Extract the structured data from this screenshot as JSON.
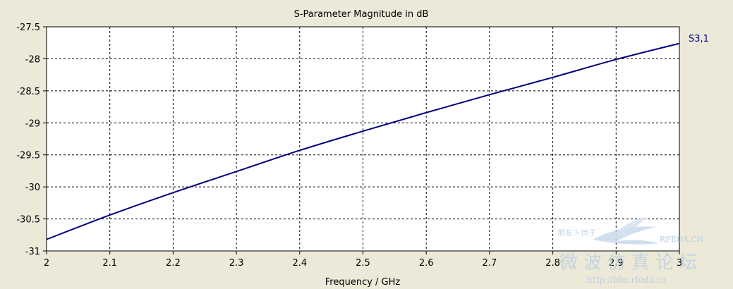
{
  "chart_data": {
    "type": "line",
    "title": "S-Parameter Magnitude in dB",
    "xlabel": "Frequency / GHz",
    "ylabel": "",
    "xlim": [
      2,
      3
    ],
    "ylim": [
      -31,
      -27.5
    ],
    "x_ticks": [
      "2",
      "2.1",
      "2.2",
      "2.3",
      "2.4",
      "2.5",
      "2.6",
      "2.7",
      "2.8",
      "2.9",
      "3"
    ],
    "y_ticks": [
      "-27.5",
      "-28",
      "-28.5",
      "-29",
      "-29.5",
      "-30",
      "-30.5",
      "-31"
    ],
    "grid": true,
    "grid_style": "dashed",
    "legend_placement": "right",
    "series": [
      {
        "name": "S3,1",
        "color": "#000080",
        "x": [
          2.0,
          2.1,
          2.2,
          2.3,
          2.4,
          2.5,
          2.6,
          2.7,
          2.8,
          2.9,
          3.0
        ],
        "y": [
          -30.82,
          -30.44,
          -30.09,
          -29.76,
          -29.43,
          -29.13,
          -28.84,
          -28.56,
          -28.29,
          -28.01,
          -27.76
        ]
      }
    ]
  },
  "watermark": {
    "logo_text": "RFEDA.CN",
    "small_text": "朋友卜伟子",
    "chinese_text": "微波仿真论坛",
    "url_text": "http://bbs.rfeda.cn"
  },
  "colors": {
    "background": "#ece9d8",
    "plot_background": "#ffffff",
    "grid": "#000000",
    "series": "#000080",
    "watermark": "#b7cde3"
  }
}
